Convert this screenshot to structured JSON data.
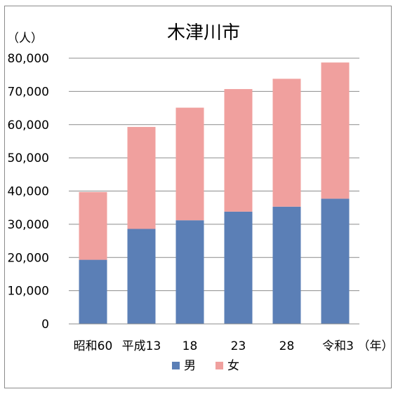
{
  "chart_data": {
    "type": "bar",
    "stacked": true,
    "title": "木津川市",
    "ylabel": "（人）",
    "xlabel": "（年）",
    "categories": [
      "昭和60",
      "平成13",
      "18",
      "23",
      "28",
      "令和3"
    ],
    "series": [
      {
        "name": "男",
        "color": "#5b7fb6",
        "values": [
          19300,
          28600,
          31200,
          33800,
          35300,
          37700
        ]
      },
      {
        "name": "女",
        "color": "#f0a09e",
        "values": [
          20400,
          30700,
          33900,
          36900,
          38500,
          41000
        ]
      }
    ],
    "ylim": [
      0,
      80000
    ],
    "yticks": [
      0,
      10000,
      20000,
      30000,
      40000,
      50000,
      60000,
      70000,
      80000
    ],
    "ytick_labels": [
      "0",
      "10,000",
      "20,000",
      "30,000",
      "40,000",
      "50,000",
      "60,000",
      "70,000",
      "80,000"
    ],
    "grid": true,
    "legend_position": "bottom"
  }
}
